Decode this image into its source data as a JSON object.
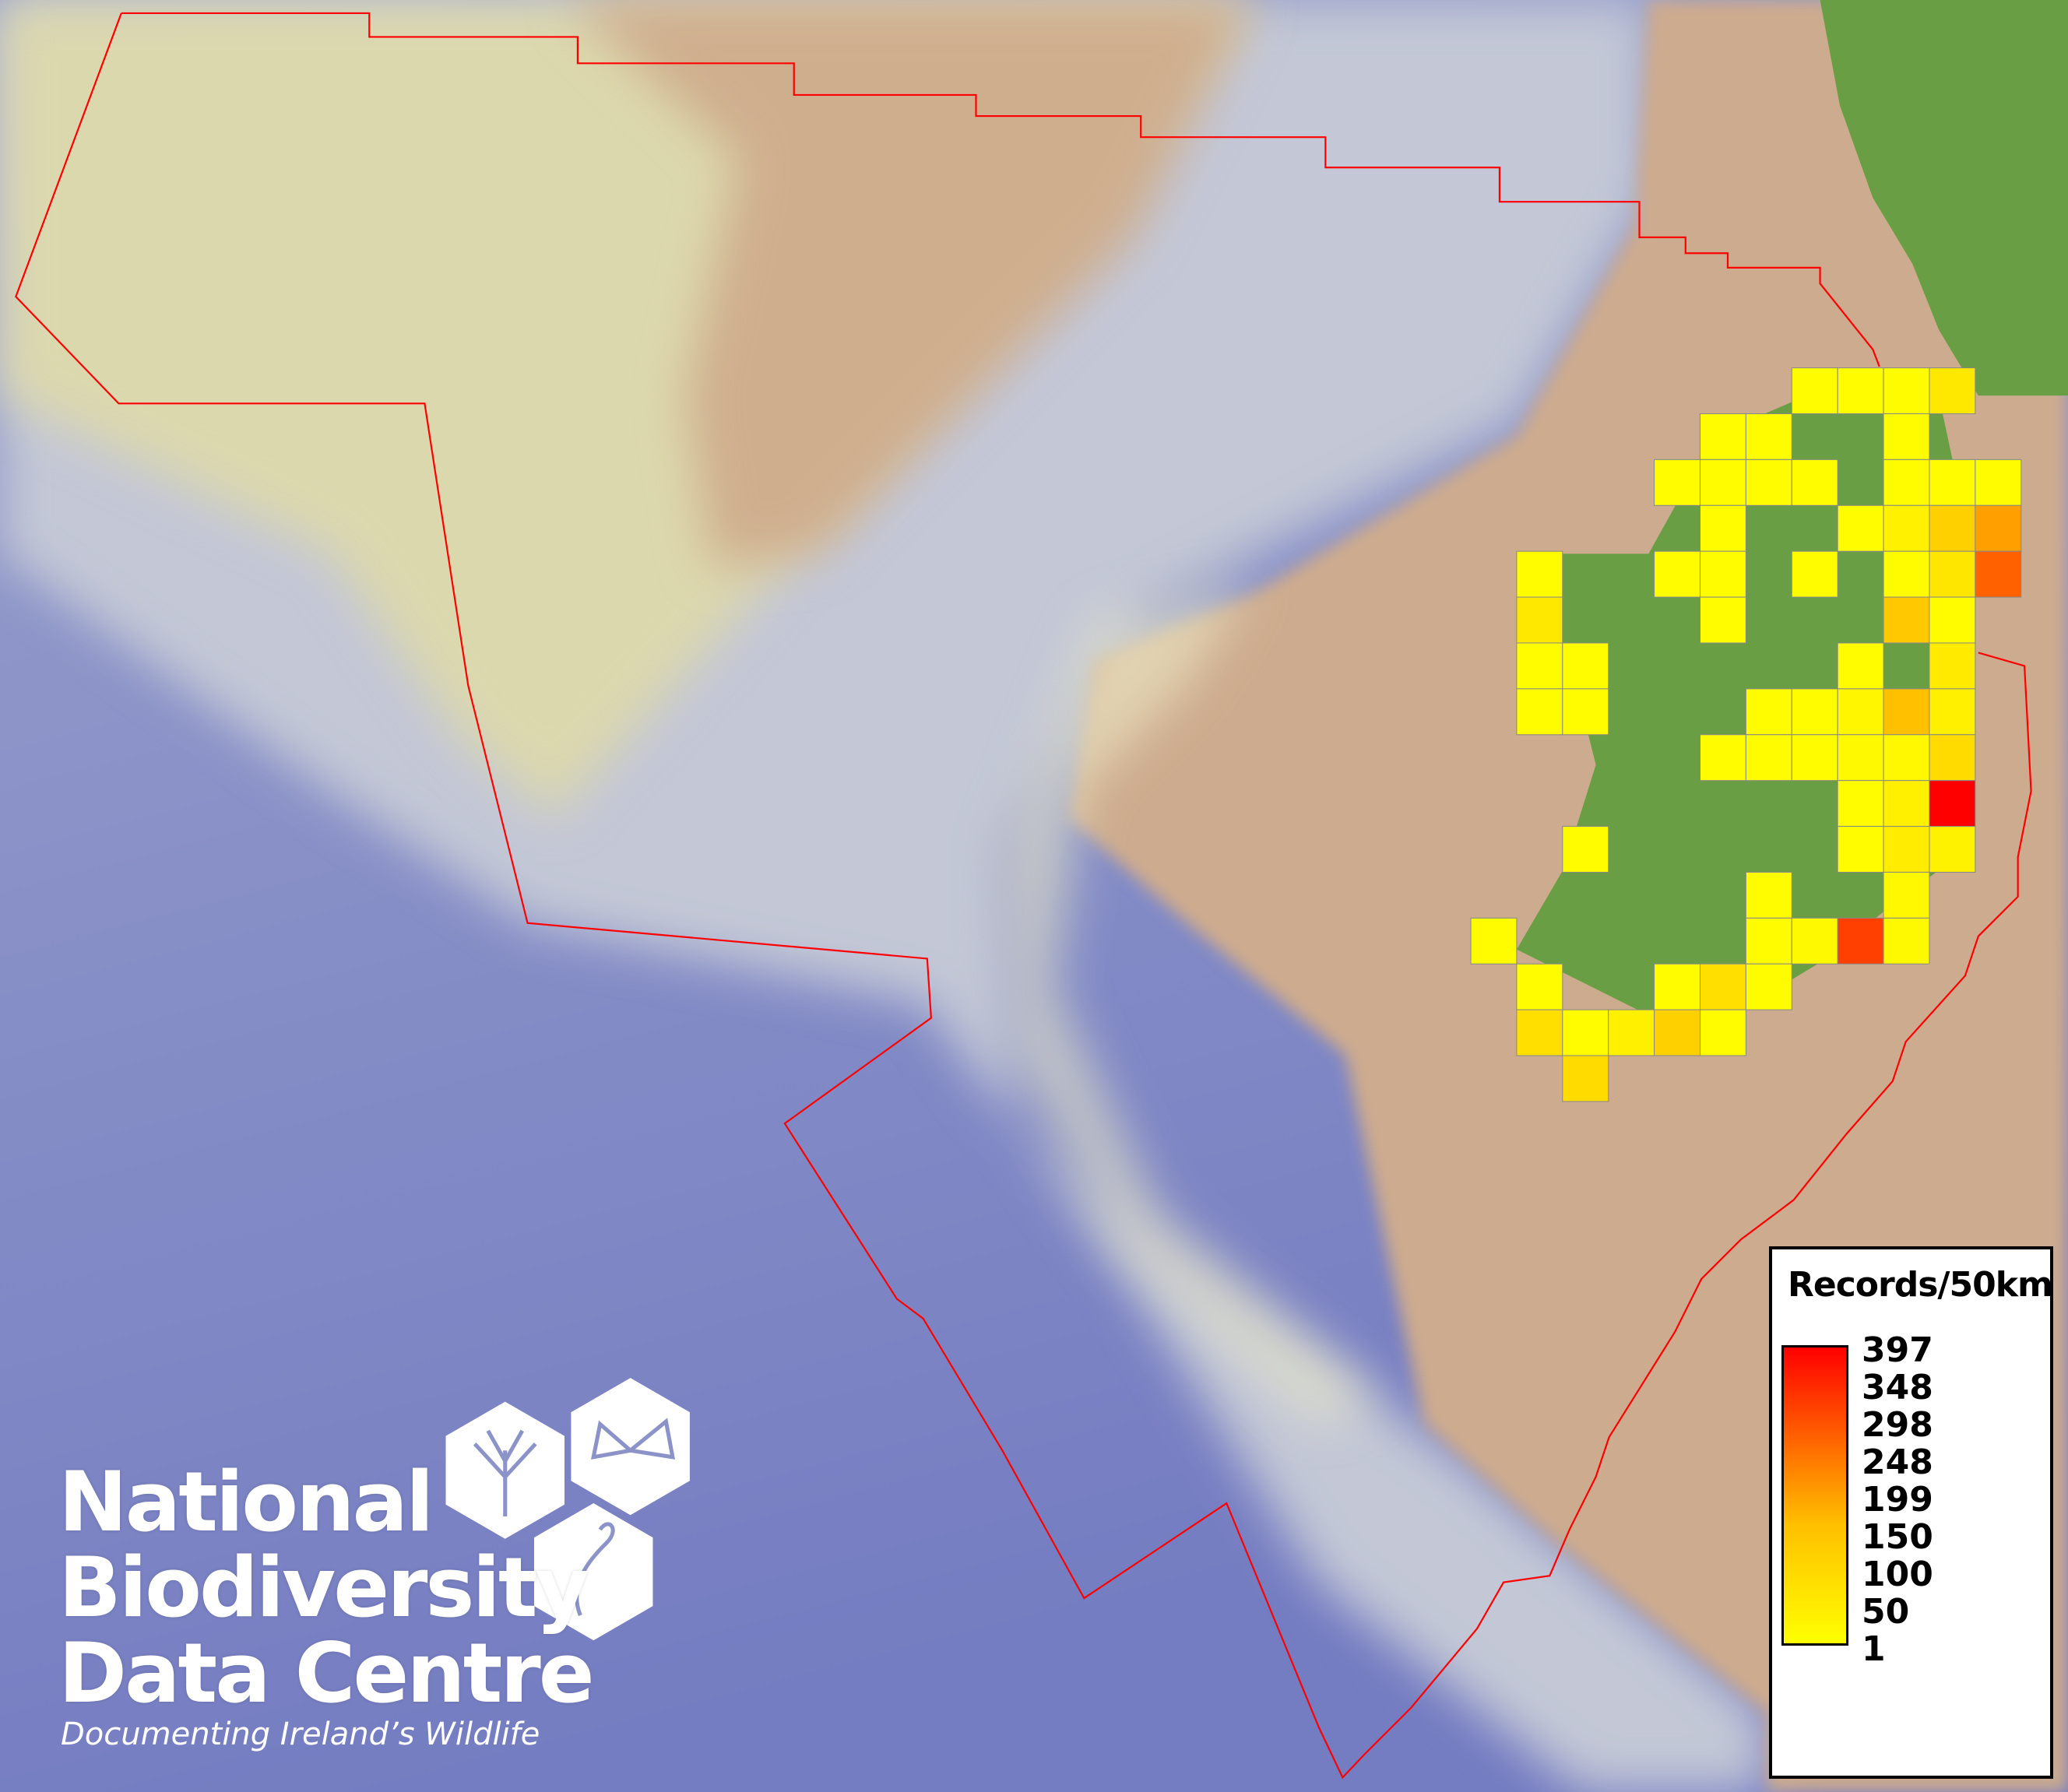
{
  "map": {
    "colors": {
      "ocean_deep": "#7b83c6",
      "shelf": "#bcc2d6",
      "plateau": "#dcd8ae",
      "sea_floor_shallow": "#cdab8e",
      "land": "#6a9e45",
      "boundary": "#ff0000",
      "cell_border": "#888888",
      "scale_low": "#ffff00",
      "scale_high": "#ff0000"
    },
    "records_grid": [
      [
        null,
        null,
        null,
        null,
        null,
        null,
        null,
        5,
        5,
        5,
        37,
        null,
        null
      ],
      [
        null,
        null,
        null,
        null,
        null,
        5,
        5,
        null,
        null,
        5,
        null,
        null,
        null
      ],
      [
        null,
        null,
        null,
        null,
        5,
        5,
        5,
        5,
        null,
        5,
        5,
        5,
        null
      ],
      [
        null,
        null,
        null,
        null,
        null,
        5,
        null,
        null,
        5,
        22,
        74,
        148,
        null
      ],
      [
        null,
        5,
        null,
        null,
        5,
        5,
        null,
        5,
        null,
        5,
        40,
        248,
        null
      ],
      [
        null,
        37,
        null,
        null,
        null,
        5,
        null,
        null,
        null,
        86,
        5,
        null,
        null
      ],
      [
        null,
        5,
        5,
        null,
        null,
        null,
        null,
        null,
        5,
        null,
        34,
        null,
        null
      ],
      [
        null,
        5,
        5,
        null,
        null,
        null,
        5,
        5,
        15,
        99,
        24,
        null,
        null
      ],
      [
        null,
        null,
        null,
        null,
        null,
        5,
        5,
        5,
        10,
        12,
        57,
        null,
        null
      ],
      [
        null,
        null,
        null,
        null,
        null,
        null,
        null,
        null,
        5,
        24,
        397,
        null,
        null
      ],
      [
        null,
        null,
        5,
        null,
        null,
        null,
        null,
        null,
        5,
        30,
        21,
        null,
        null
      ],
      [
        null,
        null,
        null,
        null,
        null,
        null,
        5,
        null,
        null,
        12,
        null,
        null,
        null
      ],
      [
        5,
        null,
        null,
        null,
        null,
        null,
        5,
        10,
        298,
        10,
        null,
        null,
        null
      ],
      [
        null,
        5,
        null,
        null,
        5,
        50,
        5,
        null,
        null,
        null,
        null,
        null,
        null
      ],
      [
        null,
        50,
        5,
        24,
        74,
        5,
        null,
        null,
        null,
        null,
        null,
        null,
        null
      ],
      [
        null,
        null,
        57,
        null,
        null,
        null,
        null,
        null,
        null,
        null,
        null,
        null,
        null
      ]
    ]
  },
  "legend": {
    "title": "Records/50km",
    "min": 1,
    "max": 397,
    "ticks": [
      "397",
      "348",
      "298",
      "248",
      "199",
      "150",
      "100",
      "50",
      "1"
    ]
  },
  "logo": {
    "line1": "National",
    "line2": "Biodiversity",
    "line3": "Data Centre",
    "tagline": "Documenting Ireland’s Wildlife",
    "icons": [
      "tree-icon",
      "butterfly-icon",
      "seahorse-icon"
    ]
  }
}
